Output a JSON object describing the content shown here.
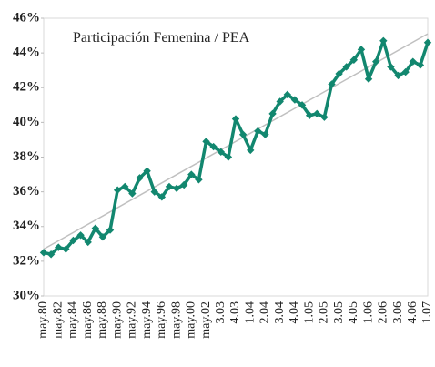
{
  "chart_data": {
    "type": "line",
    "title": "Participación Femenina / PEA",
    "categories": [
      "may.80",
      null,
      "may.82",
      null,
      "may.84",
      null,
      "may.86",
      null,
      "may.88",
      null,
      "may.90",
      null,
      "may.92",
      null,
      "may.94",
      null,
      "may.96",
      null,
      "may.98",
      null,
      "may.00",
      null,
      "may.02",
      null,
      "3.03",
      null,
      "4.03",
      null,
      "1.04",
      null,
      "2.04",
      null,
      "3.04",
      null,
      "4.04",
      null,
      "1.05",
      null,
      "2.05",
      null,
      "3.05",
      null,
      "4.05",
      null,
      "1.06",
      null,
      "2.06",
      null,
      "3.06",
      null,
      "4.06",
      null,
      "1.07"
    ],
    "series": [
      {
        "color": "#12876f",
        "values": [
          32.5,
          32.4,
          32.8,
          32.7,
          33.2,
          33.5,
          33.1,
          33.9,
          33.4,
          33.8,
          36.1,
          36.3,
          35.9,
          36.8,
          37.2,
          36.0,
          35.7,
          36.3,
          36.2,
          36.4,
          37.0,
          36.7,
          38.9,
          38.6,
          38.3,
          38.0,
          40.2,
          39.3,
          38.4,
          39.5,
          39.3,
          40.5,
          41.2,
          41.6,
          41.3,
          41.0,
          40.4,
          40.5,
          40.3,
          42.2,
          42.8,
          43.2,
          43.6,
          44.2,
          42.5,
          43.5,
          44.7,
          43.2,
          42.7,
          42.9,
          43.5,
          43.3,
          44.6
        ]
      }
    ],
    "trendline": {
      "color": "#c0c0c0",
      "values": [
        32.7,
        45.1
      ]
    },
    "ylim": [
      30,
      46
    ],
    "yticks": [
      {
        "value": 30,
        "label": "30%"
      },
      {
        "value": 32,
        "label": "32%"
      },
      {
        "value": 34,
        "label": "34%"
      },
      {
        "value": 36,
        "label": "36%"
      },
      {
        "value": 38,
        "label": "38%"
      },
      {
        "value": 40,
        "label": "40%"
      },
      {
        "value": 42,
        "label": "42%"
      },
      {
        "value": 44,
        "label": "44%"
      },
      {
        "value": 46,
        "label": "46%"
      }
    ],
    "grid": false
  }
}
